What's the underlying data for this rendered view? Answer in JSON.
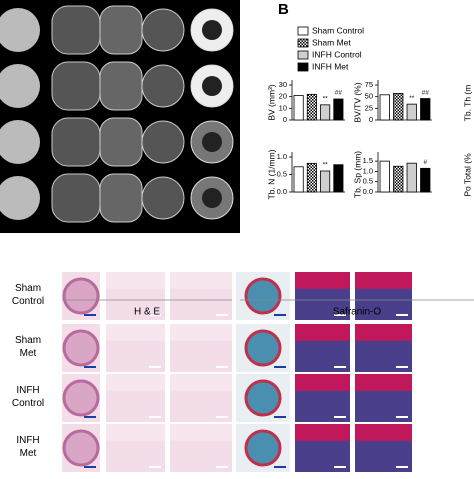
{
  "panel_label": "B",
  "legend": [
    {
      "name": "Sham Control",
      "color": "#ffffff"
    },
    {
      "name": "Sham Met",
      "color": "#888888"
    },
    {
      "name": "INFH Control",
      "color": "#cfcfcf"
    },
    {
      "name": "INFH Met",
      "color": "#000000"
    }
  ],
  "chart_data": [
    {
      "type": "bar",
      "y_label": "BV (mm³)",
      "values": [
        21,
        22,
        13,
        18
      ],
      "annotations": [
        null,
        null,
        "**",
        "##"
      ],
      "ylim": [
        0,
        30
      ],
      "yticks": [
        0,
        10,
        20,
        30
      ]
    },
    {
      "type": "bar",
      "y_label": "BV/TV (%)",
      "values": [
        54,
        57,
        34,
        46
      ],
      "annotations": [
        null,
        null,
        "**",
        "##"
      ],
      "ylim": [
        0,
        75
      ],
      "yticks": [
        0,
        25,
        50,
        75
      ]
    },
    {
      "type": "bar",
      "y_label": "Tb. N (1/mm)",
      "values": [
        0.72,
        0.82,
        0.6,
        0.78
      ],
      "annotations": [
        null,
        null,
        "**",
        null
      ],
      "ylim": [
        0,
        1
      ],
      "yticks": [
        {
          "value": 0,
          "label": "0.0"
        },
        0.5,
        {
          "value": 1,
          "label": "1.0"
        }
      ]
    },
    {
      "type": "bar",
      "y_label": "Tb. Sp (mm)",
      "values": [
        1.5,
        1.25,
        1.4,
        1.15
      ],
      "annotations": [
        null,
        null,
        null,
        "#"
      ],
      "ylim": [
        0,
        1.7
      ],
      "yticks": [
        {
          "value": 0,
          "label": "0.0"
        },
        0.5,
        {
          "value": 1,
          "label": "1.0"
        },
        1.5
      ]
    }
  ],
  "clipped_labels": [
    "Tb. Th (m",
    "Po Total (%"
  ],
  "histology": {
    "stains": [
      "H & E",
      "Safranin-O"
    ],
    "rows": [
      "Sham\nControl",
      "Sham\nMet",
      "INFH\nControl",
      "INFH\nMet"
    ]
  }
}
